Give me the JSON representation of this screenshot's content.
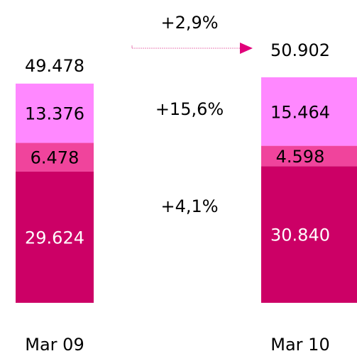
{
  "chart_data": {
    "type": "stacked_bar",
    "categories": [
      "Mar 09",
      "Mar 10"
    ],
    "series": [
      {
        "color": "#cc0066",
        "values": [
          29624,
          30840
        ],
        "value_labels": [
          "29.624",
          "30.840"
        ]
      },
      {
        "color": "#f0449c",
        "values": [
          6478,
          4598
        ],
        "value_labels": [
          "6.478",
          "4.598"
        ]
      },
      {
        "color": "#ff88ff",
        "values": [
          13376,
          15464
        ],
        "value_labels": [
          "13.376",
          "15.464"
        ]
      }
    ],
    "totals": {
      "values": [
        49478,
        50902
      ],
      "value_labels": [
        "49.478",
        "50.902"
      ]
    },
    "annotations": [
      "+2,9%",
      "+15,6%",
      "+4,1%"
    ]
  }
}
